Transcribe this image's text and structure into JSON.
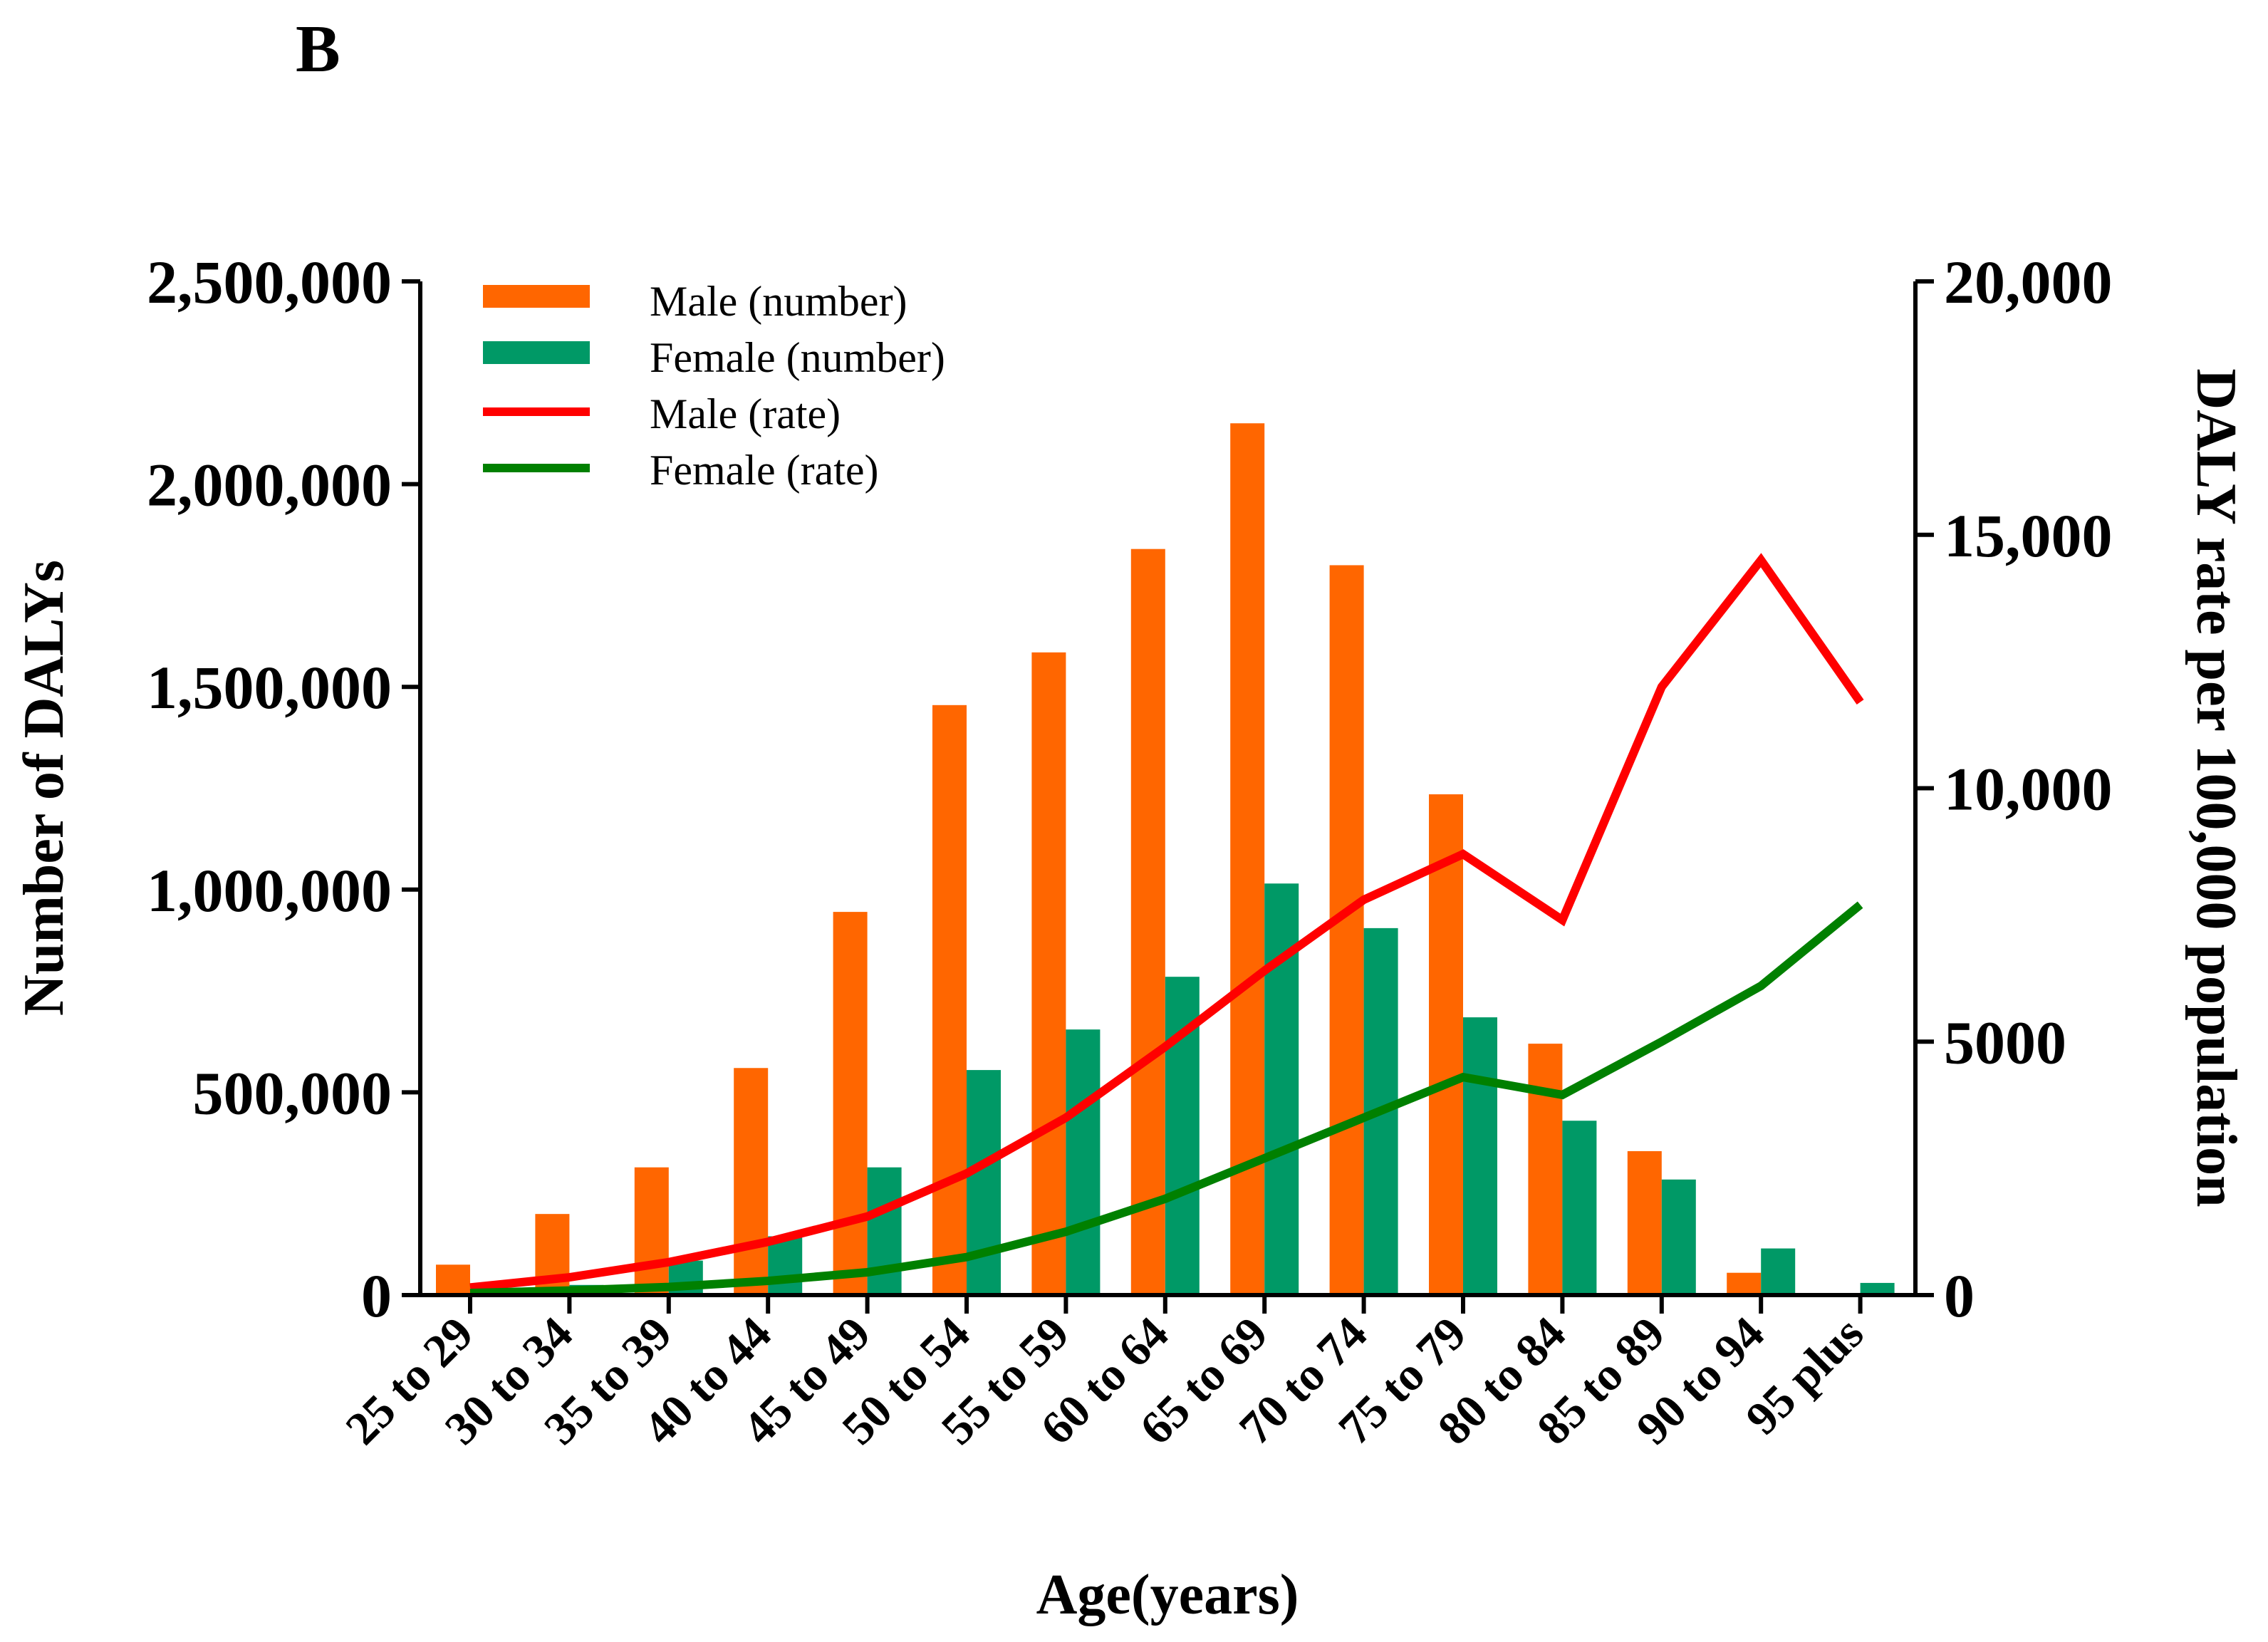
{
  "panel_label": "B",
  "chart_data": {
    "type": "bar",
    "categories": [
      "25 to 29",
      "30 to 34",
      "35 to 39",
      "40 to 44",
      "45 to 49",
      "50 to 54",
      "55 to 59",
      "60 to 64",
      "65 to 69",
      "70 to 74",
      "75 to 79",
      "80 to 84",
      "85 to 89",
      "90 to 94",
      "95 plus"
    ],
    "xlabel": "Age(years)",
    "ylabel": "Number of DALYs",
    "y2label": "DALY rate per 100,000 population",
    "ylim": [
      0,
      2500000
    ],
    "y2lim": [
      0,
      20000
    ],
    "yticks": [
      0,
      500000,
      1000000,
      1500000,
      2000000,
      2500000
    ],
    "yticklabels": [
      "0",
      "500,000",
      "1,000,000",
      "1,500,000",
      "2,000,000",
      "2,500,000"
    ],
    "y2ticks": [
      0,
      5000,
      10000,
      15000,
      20000
    ],
    "y2ticklabels": [
      "0",
      "5000",
      "10,000",
      "15,000",
      "20,000"
    ],
    "grid": false,
    "legend_position": "top-left",
    "series": [
      {
        "name": "Male (number)",
        "kind": "bar",
        "axis": "left",
        "color": "#FF6600",
        "values": [
          75000,
          200000,
          315000,
          560000,
          945000,
          1455000,
          1585000,
          1840000,
          2150000,
          1800000,
          1235000,
          620000,
          355000,
          55000,
          0
        ]
      },
      {
        "name": "Female (number)",
        "kind": "bar",
        "axis": "left",
        "color": "#009966",
        "values": [
          8000,
          25000,
          85000,
          145000,
          315000,
          555000,
          655000,
          785000,
          1015000,
          905000,
          685000,
          430000,
          285000,
          115000,
          30000
        ]
      },
      {
        "name": "Male (rate)",
        "kind": "line",
        "axis": "right",
        "color": "#FF0000",
        "values": [
          150,
          350,
          650,
          1050,
          1550,
          2400,
          3500,
          4900,
          6400,
          7800,
          8700,
          7400,
          12000,
          14500,
          11700
        ]
      },
      {
        "name": "Female (rate)",
        "kind": "line",
        "axis": "right",
        "color": "#008000",
        "values": [
          40,
          90,
          160,
          280,
          450,
          750,
          1250,
          1900,
          2700,
          3500,
          4300,
          3950,
          5000,
          6100,
          7700
        ]
      }
    ]
  }
}
